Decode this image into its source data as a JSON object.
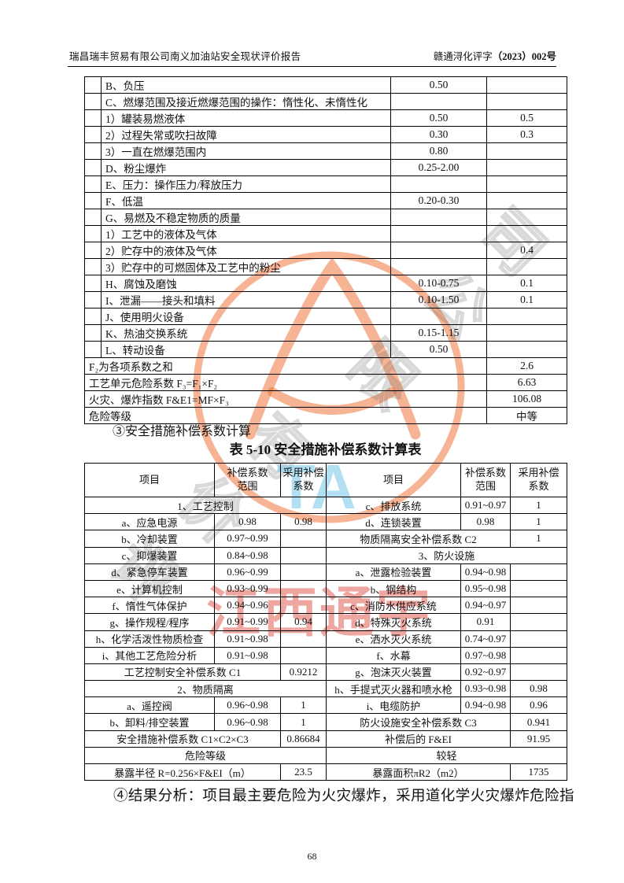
{
  "header": {
    "left": "瑞昌瑞丰贸易有限公司南义加油站安全现状评价报告",
    "right_prefix": "赣通浔化评字",
    "right_number": "（2023）002号"
  },
  "table1": {
    "rows": [
      [
        {
          "t": ""
        },
        {
          "t": "B、负压",
          "cls": "lbl"
        },
        {
          "t": "0.50"
        },
        {
          "t": ""
        }
      ],
      [
        {
          "t": ""
        },
        {
          "t": "C、燃爆范围及接近燃爆范围的操作：惰性化、未惰性化",
          "cls": "lbl"
        },
        {
          "t": ""
        },
        {
          "t": ""
        }
      ],
      [
        {
          "t": ""
        },
        {
          "t": "1）罐装易燃液体",
          "cls": "lbl"
        },
        {
          "t": "0.50"
        },
        {
          "t": "0.5"
        }
      ],
      [
        {
          "t": ""
        },
        {
          "t": "2）过程失常或吹扫故障",
          "cls": "lbl"
        },
        {
          "t": "0.30"
        },
        {
          "t": "0.3"
        }
      ],
      [
        {
          "t": ""
        },
        {
          "t": "3）一直在燃爆范围内",
          "cls": "lbl"
        },
        {
          "t": "0.80"
        },
        {
          "t": ""
        }
      ],
      [
        {
          "t": ""
        },
        {
          "t": "D、粉尘爆炸",
          "cls": "lbl"
        },
        {
          "t": "0.25-2.00"
        },
        {
          "t": ""
        }
      ],
      [
        {
          "t": ""
        },
        {
          "t": "E、压力：操作压力/释放压力",
          "cls": "lbl"
        },
        {
          "t": ""
        },
        {
          "t": ""
        }
      ],
      [
        {
          "t": ""
        },
        {
          "t": "F、低温",
          "cls": "lbl"
        },
        {
          "t": "0.20-0.30"
        },
        {
          "t": ""
        }
      ],
      [
        {
          "t": ""
        },
        {
          "t": "G、易燃及不稳定物质的质量",
          "cls": "lbl"
        },
        {
          "t": ""
        },
        {
          "t": ""
        }
      ],
      [
        {
          "t": ""
        },
        {
          "t": "1）工艺中的液体及气体",
          "cls": "lbl"
        },
        {
          "t": ""
        },
        {
          "t": ""
        }
      ],
      [
        {
          "t": ""
        },
        {
          "t": "2）贮存中的液体及气体",
          "cls": "lbl"
        },
        {
          "t": ""
        },
        {
          "t": "0.4"
        }
      ],
      [
        {
          "t": ""
        },
        {
          "t": "3）贮存中的可燃固体及工艺中的粉尘",
          "cls": "lbl"
        },
        {
          "t": ""
        },
        {
          "t": ""
        }
      ],
      [
        {
          "t": ""
        },
        {
          "t": "H、腐蚀及磨蚀",
          "cls": "lbl"
        },
        {
          "t": "0.10-0.75"
        },
        {
          "t": "0.1"
        }
      ],
      [
        {
          "t": ""
        },
        {
          "t": "I、泄漏——接头和填料",
          "cls": "lbl"
        },
        {
          "t": "0.10-1.50"
        },
        {
          "t": "0.1"
        }
      ],
      [
        {
          "t": ""
        },
        {
          "t": "J、使用明火设备",
          "cls": "lbl"
        },
        {
          "t": ""
        },
        {
          "t": ""
        }
      ],
      [
        {
          "t": ""
        },
        {
          "t": "K、热油交换系统",
          "cls": "lbl"
        },
        {
          "t": "0.15-1.15"
        },
        {
          "t": ""
        }
      ],
      [
        {
          "t": ""
        },
        {
          "t": "L、转动设备",
          "cls": "lbl"
        },
        {
          "t": "0.50"
        },
        {
          "t": ""
        }
      ],
      [
        {
          "t": "F₂为各项系数之和",
          "c": 3,
          "cls": "lbl"
        },
        {
          "t": "2.6"
        }
      ],
      [
        {
          "t": "工艺单元危险系数 F₃=F₁×F₂",
          "c": 3,
          "cls": "lbl"
        },
        {
          "t": "6.63"
        }
      ],
      [
        {
          "t": "火灾、爆炸指数 F&E1=MF×F₃",
          "c": 3,
          "cls": "lbl"
        },
        {
          "t": "106.08"
        }
      ],
      [
        {
          "t": "危险等级",
          "c": 3,
          "cls": "lbl"
        },
        {
          "t": "中等"
        }
      ]
    ]
  },
  "section_note": "③安全措施补偿系数计算",
  "table2_title": "表 5-10 安全措施补偿系数计算表",
  "table2": {
    "header": [
      {
        "t": "项目"
      },
      {
        "t": "补偿系数\n范围"
      },
      {
        "t": "采用补偿\n系数"
      },
      {
        "t": "项目"
      },
      {
        "t": "补偿系数\n范围"
      },
      {
        "t": "采用补偿\n系数"
      }
    ],
    "rows": [
      [
        {
          "t": "1、工艺控制",
          "c": 3
        },
        {
          "t": "c、排放系统"
        },
        {
          "t": "0.91~0.97"
        },
        {
          "t": "1"
        }
      ],
      [
        {
          "t": "a、应急电源"
        },
        {
          "t": "0.98"
        },
        {
          "t": "0.98"
        },
        {
          "t": "d、连锁装置"
        },
        {
          "t": "0.98"
        },
        {
          "t": "1"
        }
      ],
      [
        {
          "t": "b、冷却装置"
        },
        {
          "t": "0.97~0.99"
        },
        {
          "t": ""
        },
        {
          "t": "物质隔离安全补偿系数 C2",
          "c": 2
        },
        {
          "t": "1"
        }
      ],
      [
        {
          "t": "c、抑爆装置"
        },
        {
          "t": "0.84~0.98"
        },
        {
          "t": ""
        },
        {
          "t": "3、防火设施",
          "c": 3
        }
      ],
      [
        {
          "t": "d、紧急停车装置"
        },
        {
          "t": "0.96~0.99"
        },
        {
          "t": ""
        },
        {
          "t": "a、泄露检验装置"
        },
        {
          "t": "0.94~0.98"
        },
        {
          "t": ""
        }
      ],
      [
        {
          "t": "e、计算机控制"
        },
        {
          "t": "0.93~0.99"
        },
        {
          "t": ""
        },
        {
          "t": "b、钢结构"
        },
        {
          "t": "0.95~0.98"
        },
        {
          "t": ""
        }
      ],
      [
        {
          "t": "f、惰性气体保护"
        },
        {
          "t": "0.94~0.96"
        },
        {
          "t": ""
        },
        {
          "t": "c、消防水供应系统"
        },
        {
          "t": "0.94~0.97"
        },
        {
          "t": ""
        }
      ],
      [
        {
          "t": "g、操作规程/程序"
        },
        {
          "t": "0.91~0.99"
        },
        {
          "t": "0.94"
        },
        {
          "t": "d、特殊灭火系统"
        },
        {
          "t": "0.91"
        },
        {
          "t": ""
        }
      ],
      [
        {
          "t": "h、化学活泼性物质检查"
        },
        {
          "t": "0.91~0.98"
        },
        {
          "t": ""
        },
        {
          "t": "e、洒水灭火系统"
        },
        {
          "t": "0.74~0.97"
        },
        {
          "t": ""
        }
      ],
      [
        {
          "t": "i、其他工艺危险分析"
        },
        {
          "t": "0.91~0.98"
        },
        {
          "t": ""
        },
        {
          "t": "f、水幕"
        },
        {
          "t": "0.97~0.98"
        },
        {
          "t": ""
        }
      ],
      [
        {
          "t": "工艺控制安全补偿系数 C1",
          "c": 2
        },
        {
          "t": "0.9212"
        },
        {
          "t": "g、泡沫灭火装置"
        },
        {
          "t": "0.92~0.97"
        },
        {
          "t": ""
        }
      ],
      [
        {
          "t": "2、物质隔离",
          "c": 3
        },
        {
          "t": "h、手提式灭火器和喷水枪"
        },
        {
          "t": "0.93~0.98"
        },
        {
          "t": "0.98"
        }
      ],
      [
        {
          "t": "a、遥控阀"
        },
        {
          "t": "0.96~0.98"
        },
        {
          "t": "1"
        },
        {
          "t": "i、电缆防护"
        },
        {
          "t": "0.94~0.98"
        },
        {
          "t": "0.96"
        }
      ],
      [
        {
          "t": "b、卸料/排空装置"
        },
        {
          "t": "0.96~0.98"
        },
        {
          "t": "1"
        },
        {
          "t": "防火设施安全补偿系数 C3",
          "c": 2
        },
        {
          "t": "0.941"
        }
      ],
      [
        {
          "t": "安全措施补偿系数 C1×C2×C3",
          "c": 2
        },
        {
          "t": "0.86684"
        },
        {
          "t": "补偿后的 F&EI",
          "c": 2
        },
        {
          "t": "91.95"
        }
      ],
      [
        {
          "t": "危险等级",
          "c": 3
        },
        {
          "t": "较轻",
          "c": 3
        }
      ],
      [
        {
          "t": "暴露半径 R=0.256×F&EI（m）",
          "c": 2
        },
        {
          "t": "23.5"
        },
        {
          "t": "暴露面积πR2（m2）",
          "c": 2
        },
        {
          "t": "1735"
        }
      ]
    ]
  },
  "result_text": "④结果分析：项目最主要危险为火灾爆炸，采用道化学火灾爆炸危险指",
  "page_number": "68",
  "watermark": {
    "seal_color": "#ee6a2a",
    "red_text": "江西通宇",
    "blue_text": "TA",
    "diagonal_chars": [
      "评",
      "价",
      "有",
      "限",
      "公",
      "司"
    ]
  }
}
